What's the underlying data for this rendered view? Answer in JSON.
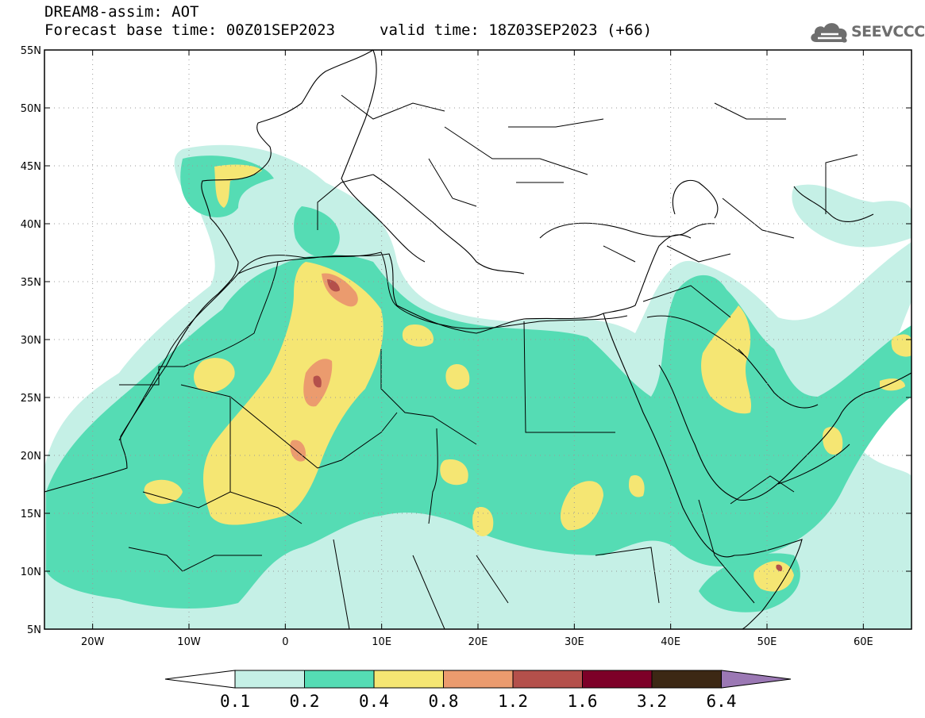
{
  "header": {
    "title": "DREAM8-assim: AOT",
    "base_time": "Forecast base time: 00Z01SEP2023",
    "valid_time": "valid time: 18Z03SEP2023 (+66)"
  },
  "logo": {
    "text": "SEEVCCC",
    "icon": "cloud-icon"
  },
  "map": {
    "lon_range": [
      -25,
      65
    ],
    "lat_range": [
      5,
      55
    ],
    "x_ticks": [
      {
        "lon": -20,
        "label": "20W"
      },
      {
        "lon": -10,
        "label": "10W"
      },
      {
        "lon": 0,
        "label": "0"
      },
      {
        "lon": 10,
        "label": "10E"
      },
      {
        "lon": 20,
        "label": "20E"
      },
      {
        "lon": 30,
        "label": "30E"
      },
      {
        "lon": 40,
        "label": "40E"
      },
      {
        "lon": 50,
        "label": "50E"
      },
      {
        "lon": 60,
        "label": "60E"
      }
    ],
    "y_ticks": [
      {
        "lat": 55,
        "label": "55N"
      },
      {
        "lat": 50,
        "label": "50N"
      },
      {
        "lat": 45,
        "label": "45N"
      },
      {
        "lat": 40,
        "label": "40N"
      },
      {
        "lat": 35,
        "label": "35N"
      },
      {
        "lat": 30,
        "label": "30N"
      },
      {
        "lat": 25,
        "label": "25N"
      },
      {
        "lat": 20,
        "label": "20N"
      },
      {
        "lat": 15,
        "label": "15N"
      },
      {
        "lat": 10,
        "label": "10N"
      },
      {
        "lat": 5,
        "label": "5N"
      }
    ],
    "grid": "dotted"
  },
  "colorbar": {
    "levels": [
      "0.1",
      "0.2",
      "0.4",
      "0.8",
      "1.2",
      "1.6",
      "3.2",
      "6.4"
    ],
    "colors": [
      "#c5f0e6",
      "#55dcb4",
      "#f5e673",
      "#eb9b6e",
      "#b4504b",
      "#7d0028",
      "#3c2814"
    ],
    "under_color": "#ffffff",
    "over_color": "#9b78b4"
  },
  "colors": {
    "level1": "#c5f0e6",
    "level2": "#55dcb4",
    "level3": "#f5e673",
    "level4": "#eb9b6e",
    "level5": "#b4504b",
    "level6": "#7d0028"
  }
}
